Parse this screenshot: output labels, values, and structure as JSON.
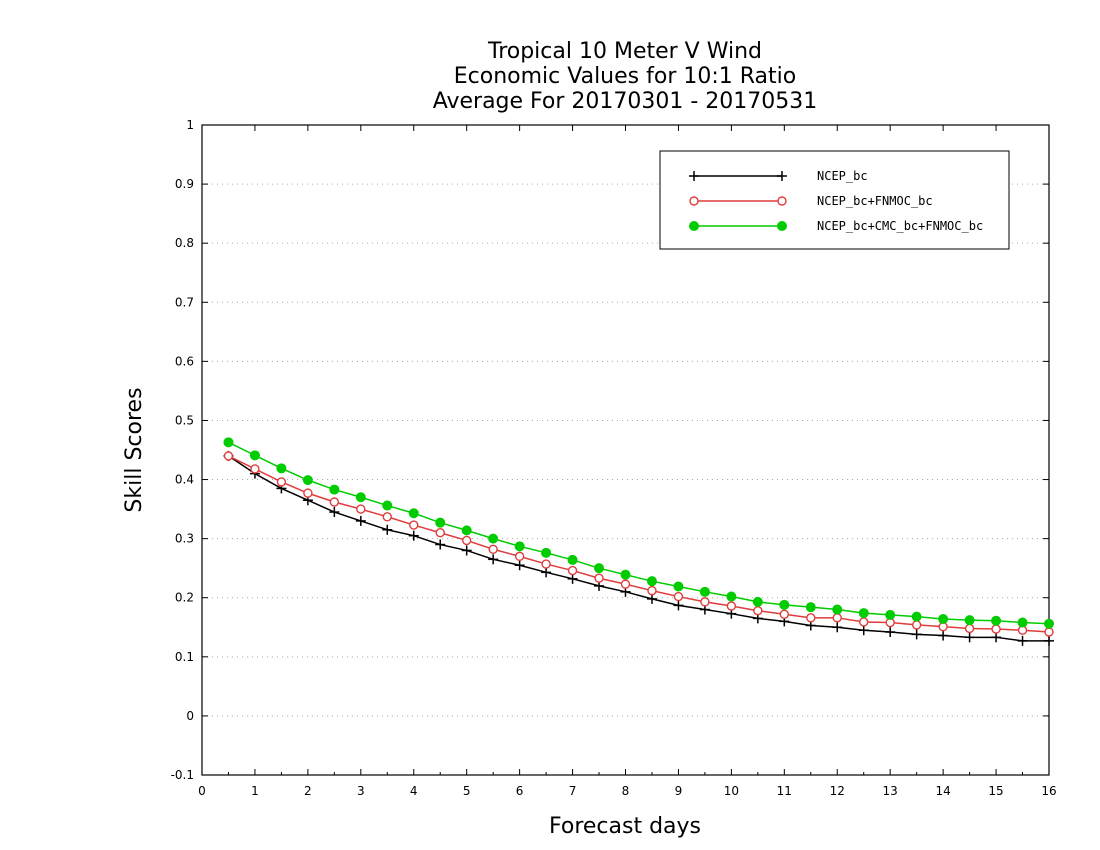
{
  "chart_data": {
    "type": "line",
    "title": [
      "Tropical 10 Meter V Wind",
      "Economic Values for 10:1 Ratio",
      "Average For 20170301 - 20170531"
    ],
    "xlabel": "Forecast days",
    "ylabel": "Skill Scores",
    "xlim": [
      0,
      16
    ],
    "ylim": [
      -0.1,
      1
    ],
    "xticks": [
      "0",
      "1",
      "2",
      "3",
      "4",
      "5",
      "6",
      "7",
      "8",
      "9",
      "10",
      "11",
      "12",
      "13",
      "14",
      "15",
      "16"
    ],
    "yticks": [
      "-0.1",
      "0",
      "0.1",
      "0.2",
      "0.3",
      "0.4",
      "0.5",
      "0.6",
      "0.7",
      "0.8",
      "0.9",
      "1"
    ],
    "grid": "horizontal-dotted",
    "legend_position": "top-right",
    "x": [
      0.5,
      1,
      1.5,
      2,
      2.5,
      3,
      3.5,
      4,
      4.5,
      5,
      5.5,
      6,
      6.5,
      7,
      7.5,
      8,
      8.5,
      9,
      9.5,
      10,
      10.5,
      11,
      11.5,
      12,
      12.5,
      13,
      13.5,
      14,
      14.5,
      15,
      15.5,
      16
    ],
    "series": [
      {
        "name": "NCEP_bc",
        "color": "#000000",
        "marker": "plus",
        "values": [
          0.44,
          0.41,
          0.385,
          0.365,
          0.345,
          0.33,
          0.315,
          0.305,
          0.29,
          0.28,
          0.265,
          0.255,
          0.243,
          0.232,
          0.22,
          0.21,
          0.198,
          0.187,
          0.18,
          0.173,
          0.165,
          0.16,
          0.153,
          0.15,
          0.145,
          0.142,
          0.138,
          0.136,
          0.133,
          0.133,
          0.127,
          0.127
        ]
      },
      {
        "name": "NCEP_bc+FNMOC_bc",
        "color": "#e03c3c",
        "marker": "open-circle",
        "values": [
          0.44,
          0.418,
          0.396,
          0.377,
          0.362,
          0.35,
          0.337,
          0.323,
          0.31,
          0.297,
          0.282,
          0.27,
          0.257,
          0.246,
          0.233,
          0.223,
          0.212,
          0.202,
          0.193,
          0.186,
          0.178,
          0.172,
          0.166,
          0.166,
          0.159,
          0.158,
          0.154,
          0.151,
          0.148,
          0.147,
          0.145,
          0.142
        ]
      },
      {
        "name": "NCEP_bc+CMC_bc+FNMOC_bc",
        "color": "#00cc00",
        "marker": "filled-circle",
        "values": [
          0.463,
          0.441,
          0.419,
          0.399,
          0.383,
          0.37,
          0.356,
          0.343,
          0.327,
          0.314,
          0.3,
          0.287,
          0.276,
          0.264,
          0.25,
          0.239,
          0.228,
          0.219,
          0.21,
          0.202,
          0.193,
          0.188,
          0.184,
          0.18,
          0.174,
          0.171,
          0.168,
          0.164,
          0.162,
          0.161,
          0.158,
          0.156
        ]
      }
    ]
  }
}
